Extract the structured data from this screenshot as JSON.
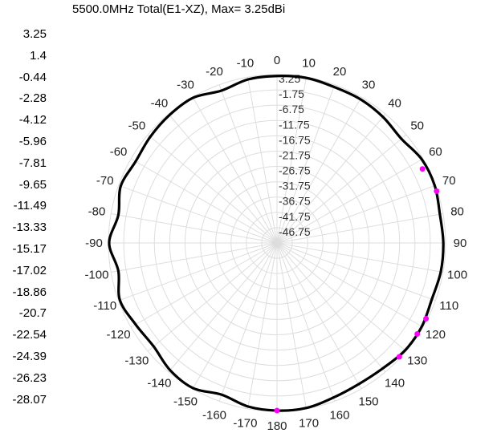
{
  "chart_data": {
    "type": "polar-line",
    "title": "5500.0MHz Total(E1-XZ), Max= 3.25dBi",
    "legend_scale": [
      "3.25",
      "1.4",
      "-0.44",
      "-2.28",
      "-4.12",
      "-5.96",
      "-7.81",
      "-9.65",
      "-11.49",
      "-13.33",
      "-15.17",
      "-17.02",
      "-18.86",
      "-20.7",
      "-22.54",
      "-24.39",
      "-26.23",
      "-28.07"
    ],
    "radial_range_dbi": [
      -51.75,
      3.25
    ],
    "radial_ticks": [
      "3.25",
      "-1.75",
      "-6.75",
      "-11.75",
      "-16.75",
      "-21.75",
      "-26.75",
      "-31.75",
      "-36.75",
      "-41.75",
      "-46.75"
    ],
    "angle_labels": [
      "0",
      "10",
      "20",
      "30",
      "40",
      "50",
      "60",
      "70",
      "80",
      "90",
      "100",
      "110",
      "120",
      "130",
      "140",
      "150",
      "160",
      "170",
      "180",
      "-170",
      "-160",
      "-150",
      "-140",
      "-130",
      "-120",
      "-110",
      "-100",
      "-90",
      "-80",
      "-70",
      "-60",
      "-50",
      "-40",
      "-30",
      "-20",
      "-10"
    ],
    "grid": true,
    "series": [
      {
        "color": "#000000",
        "angles_deg": [
          -180,
          -170,
          -160,
          -150,
          -140,
          -130,
          -120,
          -110,
          -100,
          -90,
          -80,
          -70,
          -60,
          -50,
          -40,
          -30,
          -20,
          -10,
          0,
          10,
          20,
          30,
          40,
          50,
          60,
          70,
          80,
          90,
          100,
          110,
          120,
          130,
          140,
          150,
          160,
          170
        ],
        "gain_dbi": [
          3.0,
          2.5,
          1.0,
          3.0,
          2.5,
          0.8,
          1.5,
          2.8,
          0.8,
          3.0,
          0.8,
          2.5,
          1.5,
          2.2,
          2.8,
          3.0,
          1.2,
          2.5,
          2.8,
          3.0,
          2.5,
          2.5,
          2.0,
          1.2,
          2.8,
          3.0,
          2.2,
          2.5,
          2.5,
          2.0,
          2.8,
          2.8,
          1.8,
          1.5,
          2.0,
          3.0
        ]
      }
    ],
    "markers": [
      {
        "angle_deg": 63,
        "gain_dbi": 1.5,
        "color": "#ff00ff"
      },
      {
        "angle_deg": 72,
        "gain_dbi": 3.0,
        "color": "#ff00ff"
      },
      {
        "angle_deg": 117,
        "gain_dbi": 2.8,
        "color": "#ff00ff"
      },
      {
        "angle_deg": 123,
        "gain_dbi": 2.8,
        "color": "#ff00ff"
      },
      {
        "angle_deg": 133,
        "gain_dbi": 2.8,
        "color": "#ff00ff"
      },
      {
        "angle_deg": 180,
        "gain_dbi": 3.0,
        "color": "#ff00ff"
      }
    ]
  }
}
